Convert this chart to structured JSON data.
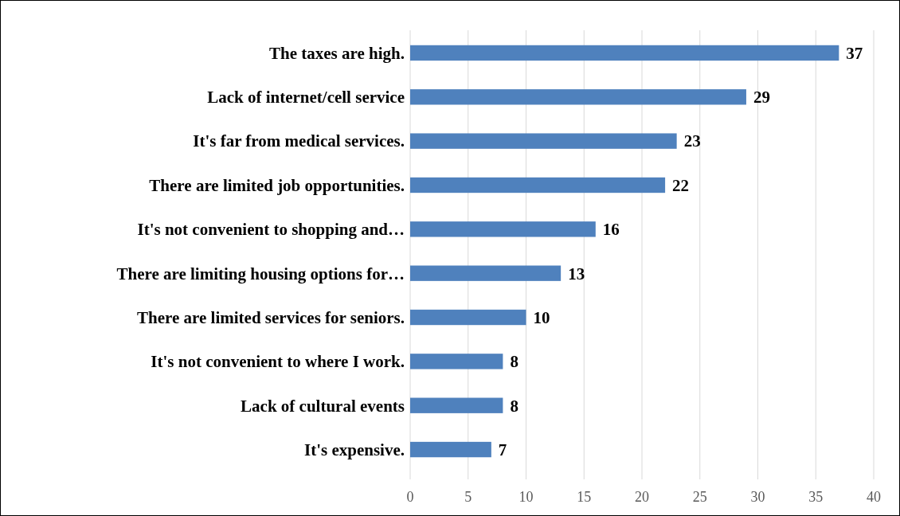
{
  "chart_data": {
    "type": "bar",
    "orientation": "horizontal",
    "categories": [
      "The taxes are high.",
      "Lack of internet/cell service",
      "It's far from medical services.",
      "There are limited job opportunities.",
      "It's not convenient to shopping and…",
      "There are limiting housing options for…",
      "There are limited services for seniors.",
      "It's not convenient to where I work.",
      "Lack of cultural events",
      "It's expensive."
    ],
    "values": [
      37,
      29,
      23,
      22,
      16,
      13,
      10,
      8,
      8,
      7
    ],
    "color": "#4f81bd",
    "xlim": [
      0,
      40
    ],
    "xticks": [
      0,
      5,
      10,
      15,
      20,
      25,
      30,
      35,
      40
    ],
    "grid": "x",
    "data_labels": true
  }
}
